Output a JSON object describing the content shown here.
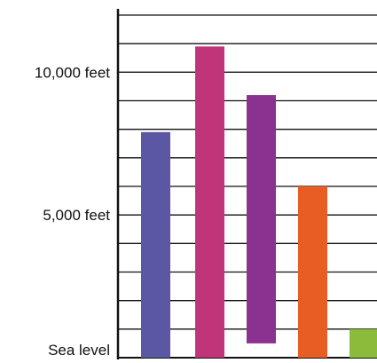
{
  "chart_data": {
    "type": "bar",
    "title": "",
    "xlabel": "",
    "ylabel": "",
    "ylim": [
      0,
      12500
    ],
    "y_tick_labels": [
      {
        "value": 0,
        "label": "Sea level"
      },
      {
        "value": 5000,
        "label": "5,000 feet"
      },
      {
        "value": 10000,
        "label": "10,000 feet"
      }
    ],
    "gridlines": [
      0,
      1000,
      2000,
      3000,
      4000,
      5000,
      6000,
      7000,
      8000,
      9000,
      10000,
      11000,
      12000
    ],
    "grid": true,
    "legend": "none",
    "bars": [
      {
        "bottom": 0,
        "top": 7900,
        "color": "#5b57a5"
      },
      {
        "bottom": 0,
        "top": 10900,
        "color": "#c0357a"
      },
      {
        "bottom": 500,
        "top": 9200,
        "color": "#8b3290"
      },
      {
        "bottom": 0,
        "top": 6000,
        "color": "#e85d24"
      },
      {
        "bottom": 0,
        "top": 1000,
        "color": "#8cbb3b"
      }
    ]
  }
}
